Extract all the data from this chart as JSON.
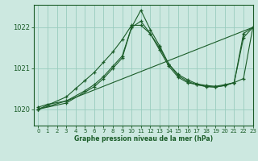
{
  "title": "Graphe pression niveau de la mer (hPa)",
  "bg_color": "#cce8e0",
  "grid_color": "#99ccbe",
  "line_color": "#1a5c28",
  "xlim": [
    -0.5,
    23
  ],
  "ylim": [
    1019.6,
    1022.55
  ],
  "yticks": [
    1020,
    1021,
    1022
  ],
  "xticks": [
    0,
    1,
    2,
    3,
    4,
    5,
    6,
    7,
    8,
    9,
    10,
    11,
    12,
    13,
    14,
    15,
    16,
    17,
    18,
    19,
    20,
    21,
    22,
    23
  ],
  "series": [
    {
      "x": [
        0,
        1,
        3,
        23
      ],
      "y": [
        1020.05,
        1020.12,
        1020.2,
        1022.0
      ]
    },
    {
      "x": [
        0,
        3,
        5,
        6,
        7,
        8,
        9,
        10,
        11,
        12,
        13,
        14,
        15,
        16,
        17,
        18,
        19,
        20,
        21,
        22,
        23
      ],
      "y": [
        1020.0,
        1020.2,
        1020.45,
        1020.6,
        1020.8,
        1021.05,
        1021.3,
        1022.0,
        1022.15,
        1021.85,
        1021.5,
        1021.1,
        1020.85,
        1020.72,
        1020.62,
        1020.58,
        1020.56,
        1020.6,
        1020.65,
        1021.85,
        1022.0
      ]
    },
    {
      "x": [
        0,
        3,
        6,
        7,
        8,
        9,
        10,
        11,
        12,
        13,
        14,
        15,
        16,
        17,
        18,
        19,
        20,
        21,
        22,
        23
      ],
      "y": [
        1020.0,
        1020.15,
        1020.55,
        1020.75,
        1021.0,
        1021.25,
        1022.0,
        1022.42,
        1021.95,
        1021.55,
        1021.1,
        1020.82,
        1020.68,
        1020.6,
        1020.55,
        1020.54,
        1020.58,
        1020.65,
        1021.75,
        1022.0
      ]
    },
    {
      "x": [
        0,
        3,
        4,
        5,
        6,
        7,
        8,
        9,
        10,
        11,
        12,
        13,
        14,
        15,
        16,
        17,
        18,
        19,
        20,
        21,
        22,
        23
      ],
      "y": [
        1020.0,
        1020.3,
        1020.5,
        1020.7,
        1020.9,
        1021.15,
        1021.4,
        1021.7,
        1022.05,
        1022.05,
        1021.85,
        1021.45,
        1021.05,
        1020.78,
        1020.65,
        1020.6,
        1020.56,
        1020.54,
        1020.58,
        1020.65,
        1020.75,
        1022.0
      ]
    }
  ]
}
